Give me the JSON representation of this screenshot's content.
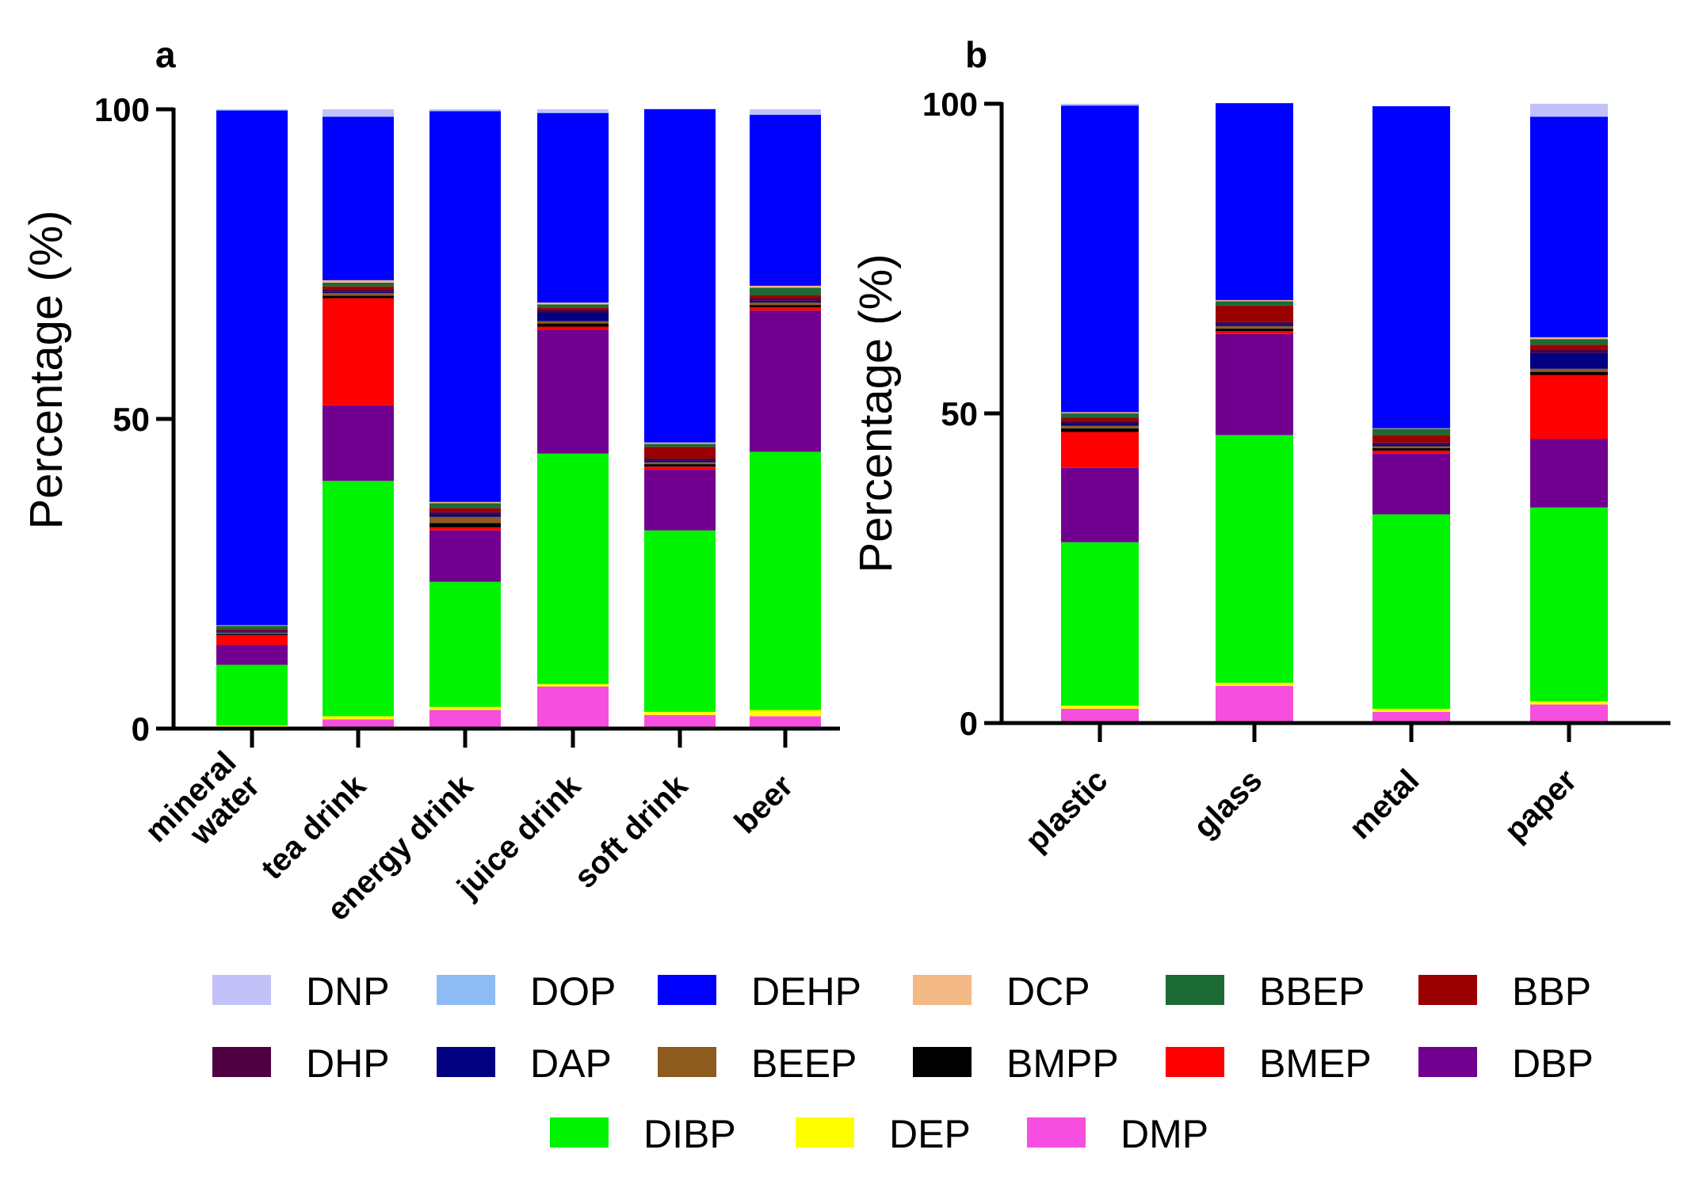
{
  "chart_data": [
    {
      "type": "bar",
      "stacked": true,
      "panel_label": "a",
      "ylabel": "Percentage (%)",
      "ylim": [
        0,
        100
      ],
      "yticks": [
        "0",
        "50",
        "100"
      ],
      "categories": [
        "mineral water",
        "tea drink",
        "energy drink",
        "juice drink",
        "soft drink",
        "beer"
      ],
      "category_lines": [
        [
          "mineral",
          "water"
        ],
        [
          "tea drink"
        ],
        [
          "energy drink"
        ],
        [
          "juice drink"
        ],
        [
          "soft drink"
        ],
        [
          "beer"
        ]
      ],
      "series": [
        {
          "name": "DMP",
          "values": [
            0.3,
            1.5,
            3.0,
            6.8,
            2.2,
            2.0
          ]
        },
        {
          "name": "DEP",
          "values": [
            0.2,
            0.5,
            0.5,
            0.4,
            0.5,
            1.0
          ]
        },
        {
          "name": "DIBP",
          "values": [
            9.8,
            38.0,
            20.2,
            37.2,
            29.3,
            41.7
          ]
        },
        {
          "name": "DBP",
          "values": [
            3.2,
            12.2,
            8.3,
            20.0,
            9.8,
            22.8
          ]
        },
        {
          "name": "BMEP",
          "values": [
            1.6,
            17.3,
            0.5,
            0.5,
            0.5,
            0.5
          ]
        },
        {
          "name": "BMPP",
          "values": [
            0.2,
            0.4,
            0.7,
            0.5,
            0.4,
            0.4
          ]
        },
        {
          "name": "BEEP",
          "values": [
            0.2,
            0.4,
            1.0,
            0.4,
            0.3,
            0.4
          ]
        },
        {
          "name": "DAP",
          "values": [
            0.2,
            0.2,
            0.4,
            1.4,
            0.3,
            0.3
          ]
        },
        {
          "name": "DHP",
          "values": [
            0.2,
            0.4,
            0.4,
            0.5,
            0.3,
            0.4
          ]
        },
        {
          "name": "BBP",
          "values": [
            0.2,
            0.5,
            0.6,
            0.3,
            1.9,
            0.5
          ]
        },
        {
          "name": "BBEP",
          "values": [
            0.5,
            0.6,
            0.8,
            0.5,
            0.5,
            1.2
          ]
        },
        {
          "name": "DCP",
          "values": [
            0.1,
            0.4,
            0.2,
            0.3,
            0.2,
            0.3
          ]
        },
        {
          "name": "DEHP",
          "values": [
            83.1,
            26.4,
            63.1,
            30.6,
            53.8,
            27.6
          ]
        },
        {
          "name": "DOP",
          "values": [
            0.1,
            0.1,
            0.1,
            0.1,
            0.0,
            0.1
          ]
        },
        {
          "name": "DNP",
          "values": [
            0.1,
            1.1,
            0.2,
            0.5,
            0.1,
            0.8
          ]
        }
      ]
    },
    {
      "type": "bar",
      "stacked": true,
      "panel_label": "b",
      "ylabel": "Percentage (%)",
      "ylim": [
        0,
        100
      ],
      "yticks": [
        "0",
        "50",
        "100"
      ],
      "categories": [
        "plastic",
        "glass",
        "metal",
        "paper"
      ],
      "category_lines": [
        [
          "plastic"
        ],
        [
          "glass"
        ],
        [
          "metal"
        ],
        [
          "paper"
        ]
      ],
      "series": [
        {
          "name": "DMP",
          "values": [
            2.3,
            6.0,
            1.8,
            3.0
          ]
        },
        {
          "name": "DEP",
          "values": [
            0.5,
            0.5,
            0.5,
            0.5
          ]
        },
        {
          "name": "DIBP",
          "values": [
            26.4,
            40.0,
            31.4,
            31.3
          ]
        },
        {
          "name": "DBP",
          "values": [
            12.0,
            16.3,
            9.8,
            11.1
          ]
        },
        {
          "name": "BMEP",
          "values": [
            5.8,
            0.5,
            0.5,
            10.3
          ]
        },
        {
          "name": "BMPP",
          "values": [
            0.6,
            0.4,
            0.4,
            0.5
          ]
        },
        {
          "name": "BEEP",
          "values": [
            0.4,
            0.4,
            0.3,
            0.5
          ]
        },
        {
          "name": "DAP",
          "values": [
            0.4,
            0.3,
            0.3,
            2.6
          ]
        },
        {
          "name": "DHP",
          "values": [
            0.4,
            0.4,
            0.3,
            0.5
          ]
        },
        {
          "name": "BBP",
          "values": [
            0.5,
            2.6,
            1.2,
            0.8
          ]
        },
        {
          "name": "BBEP",
          "values": [
            0.7,
            0.7,
            1.0,
            0.9
          ]
        },
        {
          "name": "DCP",
          "values": [
            0.2,
            0.2,
            0.1,
            0.3
          ]
        },
        {
          "name": "DEHP",
          "values": [
            49.5,
            31.8,
            52.0,
            35.6
          ]
        },
        {
          "name": "DOP",
          "values": [
            0.1,
            0.0,
            0.0,
            0.1
          ]
        },
        {
          "name": "DNP",
          "values": [
            0.2,
            0.0,
            0.0,
            2.0
          ]
        }
      ]
    }
  ],
  "colors": {
    "DNP": "#c2c2f8",
    "DOP": "#8fbbf5",
    "DEHP": "#0000fe",
    "DCP": "#f2b885",
    "BBEP": "#1c6b34",
    "BBP": "#9a0000",
    "DHP": "#4f0040",
    "DAP": "#000080",
    "BEEP": "#8e5b1e",
    "BMPP": "#000000",
    "BMEP": "#fe0000",
    "DBP": "#710090",
    "DIBP": "#00f300",
    "DEP": "#fefe00",
    "DMP": "#f64ede"
  },
  "legend": {
    "rows": [
      [
        "DNP",
        "DOP",
        "DEHP",
        "DCP",
        "BBEP",
        "BBP"
      ],
      [
        "DHP",
        "DAP",
        "BEEP",
        "BMPP",
        "BMEP",
        "DBP"
      ],
      [
        "DIBP",
        "DEP",
        "DMP"
      ]
    ]
  }
}
